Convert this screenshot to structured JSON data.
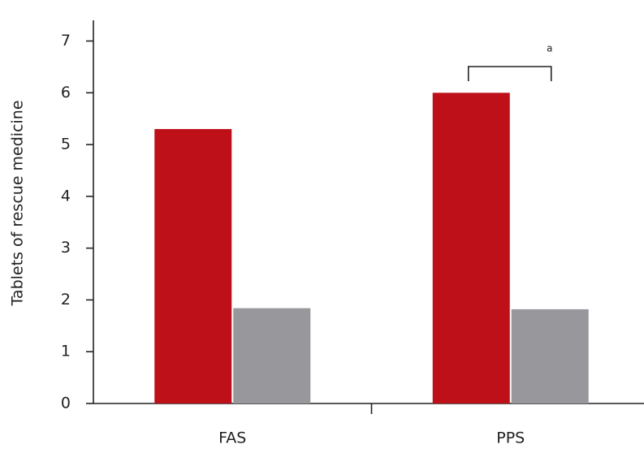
{
  "chart_data": {
    "type": "bar",
    "y_label": "Tablets of rescue medicine",
    "categories": [
      "FAS",
      "PPS"
    ],
    "series": [
      {
        "color": "#be1018",
        "values": [
          5.3,
          6.0
        ]
      },
      {
        "color": "#97979c",
        "values": [
          1.84,
          1.82
        ]
      }
    ],
    "ylim": [
      0,
      7.4
    ],
    "yticks": [
      0,
      1,
      2,
      3,
      4,
      5,
      6,
      7
    ],
    "annotation": "a"
  }
}
